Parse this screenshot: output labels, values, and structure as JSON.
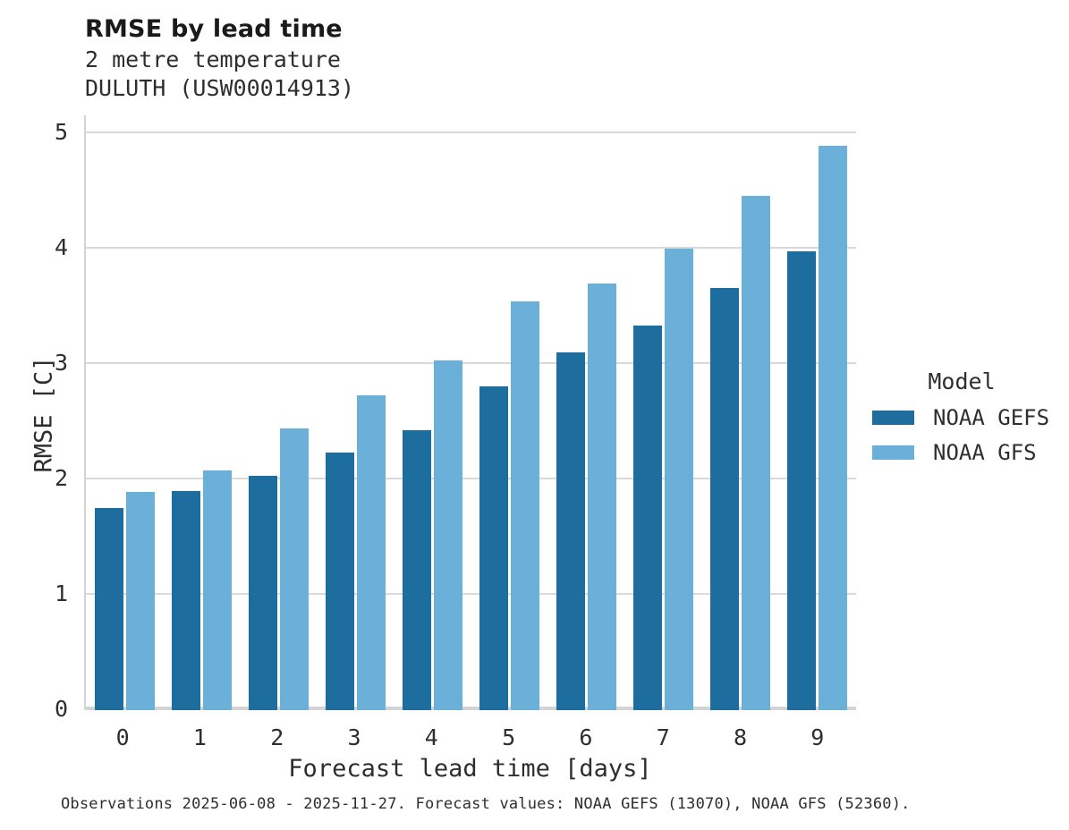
{
  "header": {
    "title": "RMSE by lead time",
    "subtitle_line1": "2 metre temperature",
    "subtitle_line2": "DULUTH (USW00014913)"
  },
  "chart_data": {
    "type": "bar",
    "title": "RMSE by lead time",
    "subtitle": "2 metre temperature, DULUTH (USW00014913)",
    "xlabel": "Forecast lead time [days]",
    "ylabel": "RMSE [C]",
    "categories": [
      "0",
      "1",
      "2",
      "3",
      "4",
      "5",
      "6",
      "7",
      "8",
      "9"
    ],
    "series": [
      {
        "name": "NOAA GEFS",
        "color": "#1d6e9e",
        "values": [
          1.75,
          1.9,
          2.03,
          2.23,
          2.43,
          2.81,
          3.1,
          3.33,
          3.66,
          3.98
        ]
      },
      {
        "name": "NOAA GFS",
        "color": "#6bb0d9",
        "values": [
          1.89,
          2.08,
          2.44,
          2.73,
          3.03,
          3.54,
          3.7,
          4.0,
          4.46,
          4.89
        ]
      }
    ],
    "ylim": [
      0,
      5
    ],
    "yticks": [
      0,
      1,
      2,
      3,
      4,
      5
    ],
    "grid": "horizontal",
    "legend_title": "Model",
    "legend_position": "right"
  },
  "axes": {
    "xlabel": "Forecast lead time [days]",
    "ylabel": "RMSE [C]"
  },
  "legend": {
    "title": "Model",
    "items": [
      {
        "label": "NOAA GEFS",
        "color": "#1d6e9e"
      },
      {
        "label": "NOAA GFS",
        "color": "#6bb0d9"
      }
    ]
  },
  "caption": "Observations 2025-06-08 - 2025-11-27. Forecast values: NOAA GEFS (13070), NOAA GFS (52360).",
  "colors": {
    "bar_dark": "#1d6e9e",
    "bar_light": "#6bb0d9",
    "gridline": "#d9d9d9",
    "axis_line": "#d4d4d4",
    "title_text": "#1a1a1a",
    "body_text": "#2e2e2e"
  }
}
